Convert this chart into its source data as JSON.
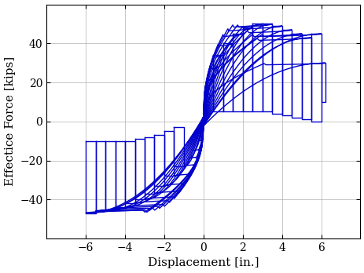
{
  "title": "",
  "xlabel": "Displacement [in.]",
  "ylabel": "Effectice Force [kips]",
  "line_color": "#0000CC",
  "line_width": 1.0,
  "xlim": [
    -8,
    8
  ],
  "ylim": [
    -60,
    60
  ],
  "xticks": [
    -6,
    -4,
    -2,
    0,
    2,
    4,
    6
  ],
  "yticks": [
    -40,
    -20,
    0,
    20,
    40
  ],
  "grid": true,
  "background_color": "#ffffff",
  "cycles": [
    {
      "pd": 0.25,
      "pf": 14,
      "nd": -0.25,
      "nf": -10
    },
    {
      "pd": 0.5,
      "pf": 22,
      "nd": -0.5,
      "nf": -15
    },
    {
      "pd": 0.75,
      "pf": 28,
      "nd": -0.75,
      "nf": -19
    },
    {
      "pd": 1.0,
      "pf": 34,
      "nd": -1.0,
      "nf": -23
    },
    {
      "pd": 1.5,
      "pf": 40,
      "nd": -1.5,
      "nf": -28
    },
    {
      "pd": 2.0,
      "pf": 45,
      "nd": -2.0,
      "nf": -33
    },
    {
      "pd": 2.5,
      "pf": 48,
      "nd": -2.5,
      "nf": -37
    },
    {
      "pd": 3.0,
      "pf": 50,
      "nd": -3.0,
      "nf": -40
    },
    {
      "pd": 3.5,
      "pf": 50,
      "nd": -3.5,
      "nf": -42
    },
    {
      "pd": 4.0,
      "pf": 49,
      "nd": -4.0,
      "nf": -44
    },
    {
      "pd": 4.5,
      "pf": 47,
      "nd": -4.5,
      "nf": -45
    },
    {
      "pd": 5.0,
      "pf": 45,
      "nd": -5.0,
      "nf": -46
    },
    {
      "pd": 5.5,
      "pf": 43,
      "nd": -5.5,
      "nf": -46
    },
    {
      "pd": 6.0,
      "pf": 45,
      "nd": -5.8,
      "nf": -47
    },
    {
      "pd": 6.2,
      "pf": 30,
      "nd": -6.0,
      "nf": -47
    }
  ]
}
